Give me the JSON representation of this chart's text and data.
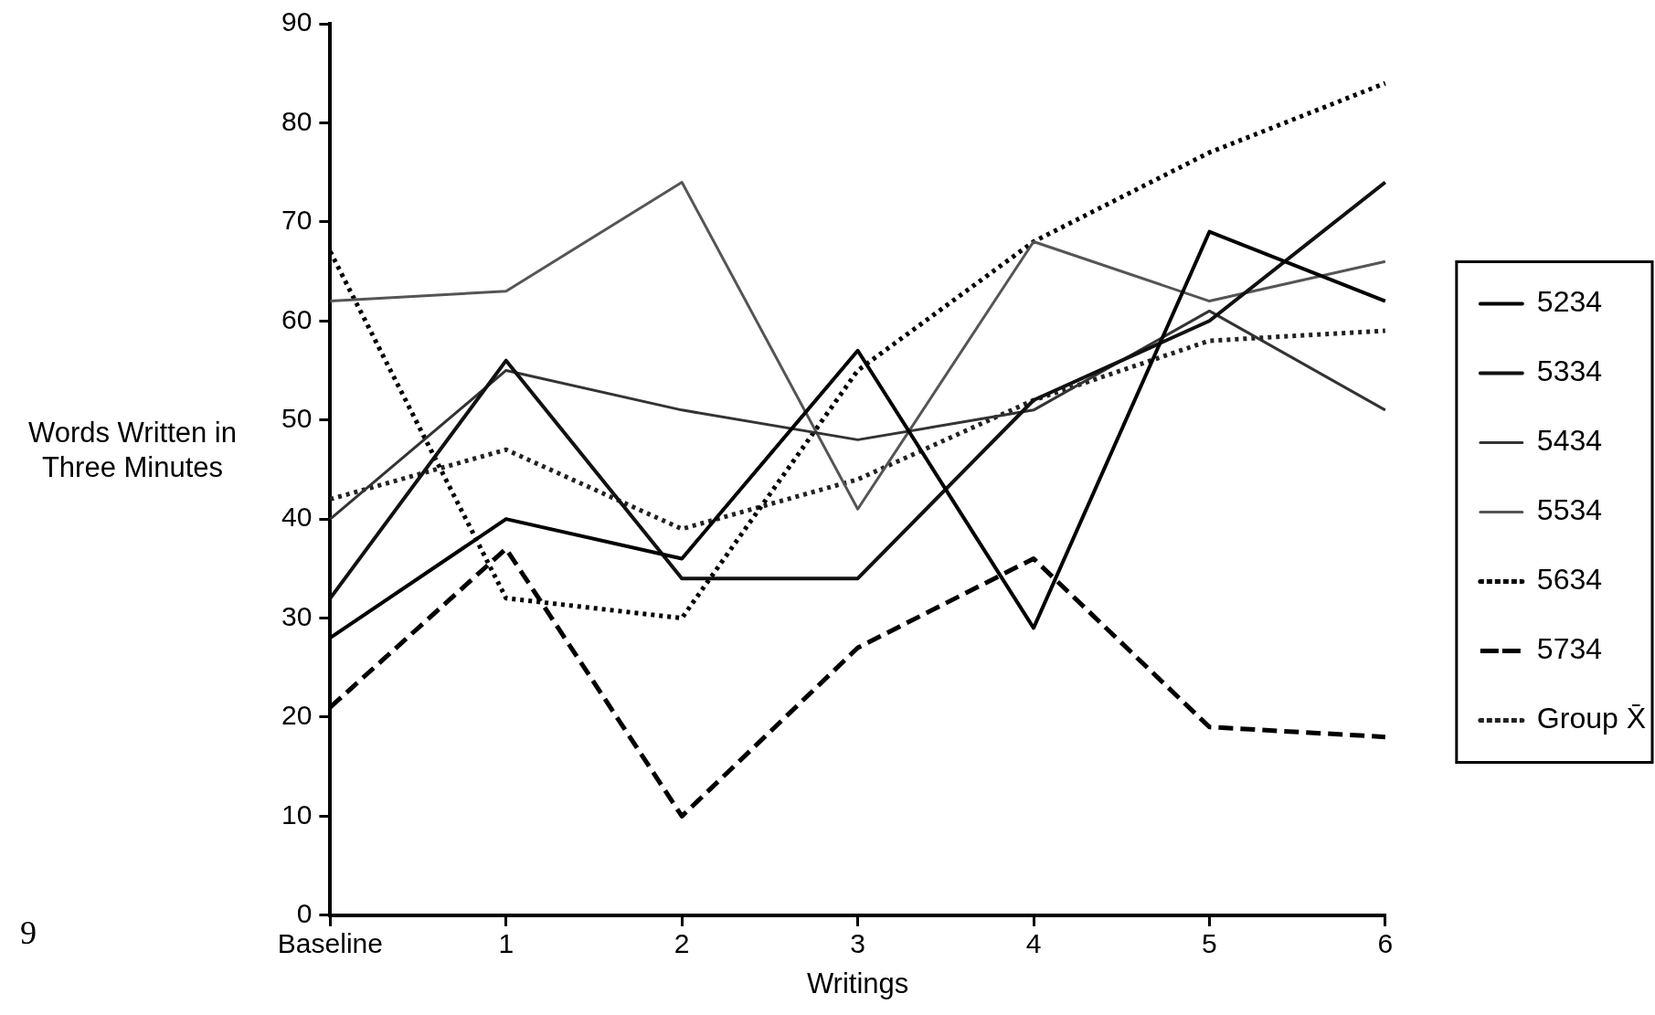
{
  "chart_data": {
    "type": "line",
    "xlabel": "Writings",
    "ylabel": "Words Written in Three Minutes",
    "categories": [
      "Baseline",
      "1",
      "2",
      "3",
      "4",
      "5",
      "6"
    ],
    "ylim": [
      0,
      90
    ],
    "yticks": [
      0,
      10,
      20,
      30,
      40,
      50,
      60,
      70,
      80,
      90
    ],
    "legend": "right",
    "marker": "none",
    "series": [
      {
        "name": "5234",
        "color": "#000000",
        "line_style": "solid",
        "values": [
          28,
          40,
          36,
          57,
          29,
          69,
          62
        ]
      },
      {
        "name": "5334",
        "color": "#111111",
        "line_style": "solid",
        "values": [
          32,
          56,
          34,
          34,
          52,
          60,
          74
        ]
      },
      {
        "name": "5434",
        "color": "#333333",
        "line_style": "solid",
        "values": [
          40,
          55,
          51,
          48,
          51,
          61,
          51
        ]
      },
      {
        "name": "5534",
        "color": "#555555",
        "line_style": "solid",
        "values": [
          62,
          63,
          74,
          41,
          68,
          62,
          66
        ]
      },
      {
        "name": "5634",
        "color": "#000000",
        "line_style": "dotted",
        "values": [
          67,
          32,
          30,
          55,
          68,
          77,
          84
        ]
      },
      {
        "name": "5734",
        "color": "#000000",
        "line_style": "dashed",
        "values": [
          21,
          37,
          10,
          27,
          36,
          19,
          18
        ]
      },
      {
        "name": "Group X̄",
        "color": "#222222",
        "line_style": "dotted",
        "values": [
          42,
          47,
          39,
          44,
          52,
          58,
          59
        ]
      }
    ],
    "annotations": [
      "9"
    ]
  }
}
